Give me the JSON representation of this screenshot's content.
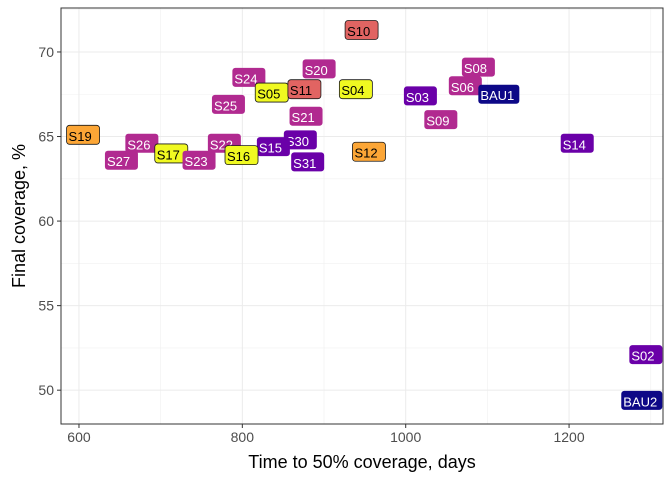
{
  "chart_data": {
    "type": "scatter",
    "title": "",
    "xlabel": "Time to 50% coverage, days",
    "ylabel": "Final coverage, %",
    "xlim": [
      578,
      1315
    ],
    "ylim": [
      48,
      72.6
    ],
    "xticks": [
      600,
      800,
      1000,
      1200
    ],
    "yticks": [
      50,
      55,
      60,
      65,
      70
    ],
    "grid": true,
    "colors": {
      "bau": "#0d0887",
      "purple": "#6a00a8",
      "magenta": "#b12a90",
      "red": "#e16462",
      "orange": "#fca636",
      "yellow": "#f0f921"
    },
    "points": [
      {
        "label": "S10",
        "x": 946,
        "y": 71.3,
        "color": "red"
      },
      {
        "label": "S08",
        "x": 1089,
        "y": 69.1,
        "color": "magenta"
      },
      {
        "label": "S20",
        "x": 894,
        "y": 69.0,
        "color": "magenta"
      },
      {
        "label": "S24",
        "x": 808,
        "y": 68.5,
        "color": "magenta"
      },
      {
        "label": "S06",
        "x": 1073,
        "y": 68.0,
        "color": "magenta"
      },
      {
        "label": "S05",
        "x": 836,
        "y": 67.6,
        "color": "yellow"
      },
      {
        "label": "S11",
        "x": 876,
        "y": 67.8,
        "color": "red"
      },
      {
        "label": "S04",
        "x": 939,
        "y": 67.8,
        "color": "yellow"
      },
      {
        "label": "S03",
        "x": 1018,
        "y": 67.4,
        "color": "purple"
      },
      {
        "label": "BAU1",
        "x": 1114,
        "y": 67.5,
        "color": "bau"
      },
      {
        "label": "S25",
        "x": 783,
        "y": 66.9,
        "color": "magenta"
      },
      {
        "label": "S21",
        "x": 878,
        "y": 66.2,
        "color": "magenta"
      },
      {
        "label": "S09",
        "x": 1043,
        "y": 66.0,
        "color": "magenta"
      },
      {
        "label": "S19",
        "x": 605,
        "y": 65.1,
        "color": "orange"
      },
      {
        "label": "S26",
        "x": 677,
        "y": 64.6,
        "color": "magenta"
      },
      {
        "label": "S22",
        "x": 778,
        "y": 64.6,
        "color": "magenta"
      },
      {
        "label": "S30",
        "x": 871,
        "y": 64.8,
        "color": "purple"
      },
      {
        "label": "S14",
        "x": 1210,
        "y": 64.6,
        "color": "purple"
      },
      {
        "label": "S15",
        "x": 838,
        "y": 64.4,
        "color": "purple"
      },
      {
        "label": "S12",
        "x": 955,
        "y": 64.1,
        "color": "orange"
      },
      {
        "label": "S17",
        "x": 713,
        "y": 64.0,
        "color": "yellow"
      },
      {
        "label": "S16",
        "x": 799,
        "y": 63.9,
        "color": "yellow"
      },
      {
        "label": "S27",
        "x": 652,
        "y": 63.6,
        "color": "magenta"
      },
      {
        "label": "S23",
        "x": 747,
        "y": 63.6,
        "color": "magenta"
      },
      {
        "label": "S31",
        "x": 880,
        "y": 63.5,
        "color": "purple"
      },
      {
        "label": "S02",
        "x": 1294,
        "y": 52.1,
        "color": "purple"
      },
      {
        "label": "BAU2",
        "x": 1289,
        "y": 49.4,
        "color": "bau"
      }
    ]
  }
}
